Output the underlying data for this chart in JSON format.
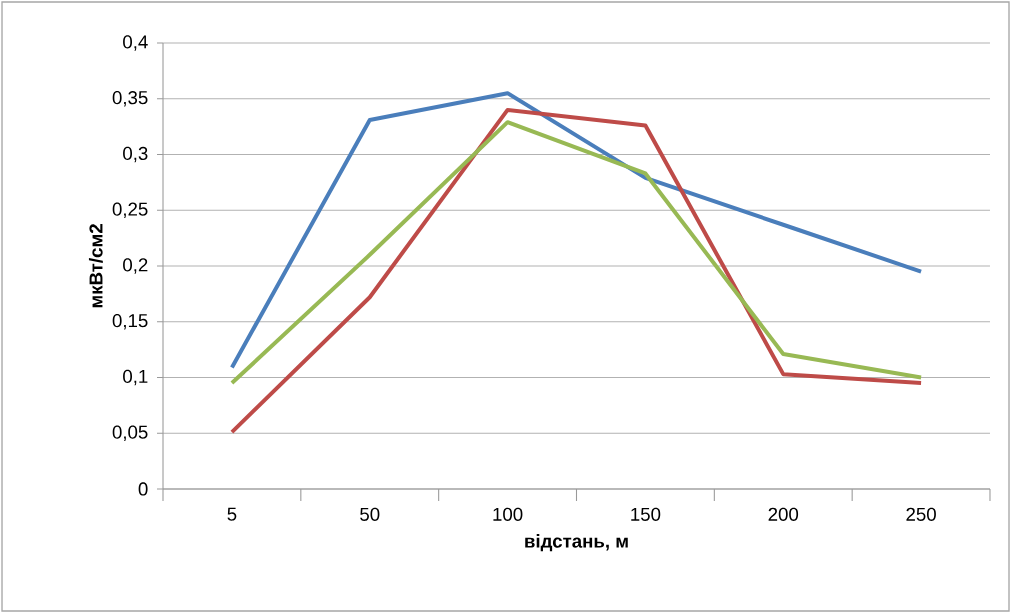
{
  "chart_data": {
    "type": "line",
    "xlabel": "відстань, м",
    "ylabel": "мкВт/см2",
    "categories": [
      "5",
      "50",
      "100",
      "150",
      "200",
      "250"
    ],
    "series": [
      {
        "color": "#4a7ebb",
        "values": [
          0.109,
          0.331,
          0.355,
          0.279,
          0.237,
          0.195
        ]
      },
      {
        "color": "#be4b48",
        "values": [
          0.051,
          0.172,
          0.34,
          0.326,
          0.103,
          0.095
        ]
      },
      {
        "color": "#98b954",
        "values": [
          0.095,
          0.21,
          0.329,
          0.283,
          0.121,
          0.1
        ]
      }
    ],
    "ylim": [
      0,
      0.4
    ],
    "yticks": [
      0,
      {
        "value": 0.05,
        "label": "0,05"
      },
      {
        "value": 0.1,
        "label": "0,1"
      },
      {
        "value": 0.15,
        "label": "0,15"
      },
      {
        "value": 0.2,
        "label": "0,2"
      },
      {
        "value": 0.25,
        "label": "0,25"
      },
      {
        "value": 0.3,
        "label": "0,3"
      },
      {
        "value": 0.35,
        "label": "0,35"
      },
      {
        "value": 0.4,
        "label": "0,4"
      }
    ],
    "grid": "y",
    "legend": false,
    "marker": "none",
    "line_style": "solid"
  }
}
